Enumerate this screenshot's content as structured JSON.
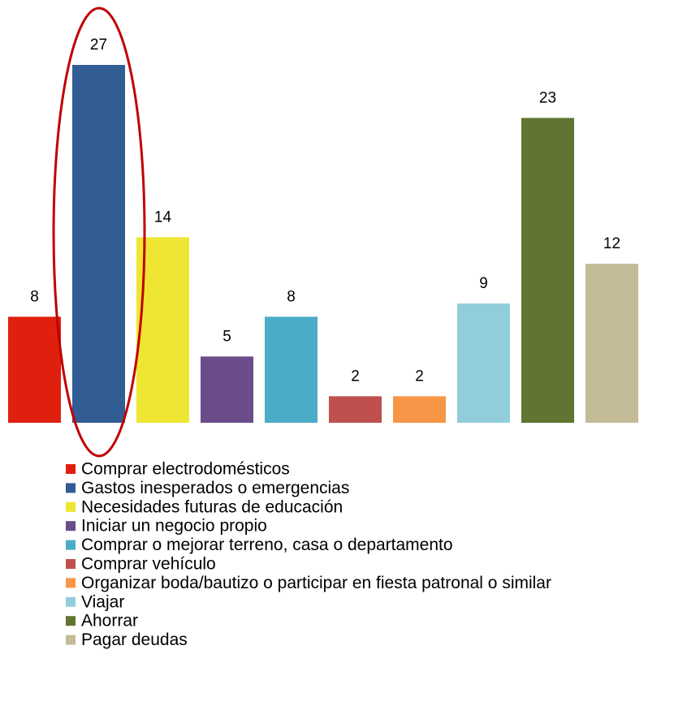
{
  "chart_data": {
    "type": "bar",
    "categories": [
      "Comprar electrodomésticos",
      "Gastos inesperados o emergencias",
      "Necesidades futuras de educación",
      "Iniciar un negocio propio",
      "Comprar o mejorar terreno, casa o departamento",
      "Comprar vehículo",
      "Organizar boda/bautizo o participar en fiesta patronal o similar",
      "Viajar",
      "Ahorrar",
      "Pagar deudas"
    ],
    "values": [
      8,
      27,
      14,
      5,
      8,
      2,
      2,
      9,
      23,
      12
    ],
    "colors": [
      "#e0200f",
      "#325c94",
      "#eee632",
      "#6a4c8a",
      "#4aacc6",
      "#c0504d",
      "#f79646",
      "#92cddc",
      "#5f7531",
      "#c4bc96"
    ],
    "legend": "bottom"
  }
}
